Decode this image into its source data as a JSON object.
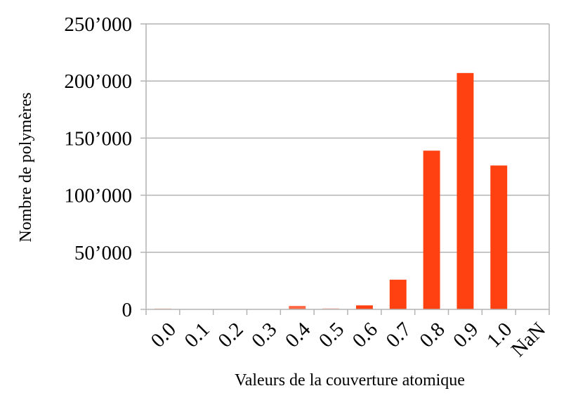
{
  "chart_data": {
    "type": "bar",
    "categories": [
      "0.0",
      "0.1",
      "0.2",
      "0.3",
      "0.4",
      "0.5",
      "0.6",
      "0.7",
      "0.8",
      "0.9",
      "1.0",
      "NaN"
    ],
    "values": [
      800,
      0,
      300,
      0,
      3000,
      1000,
      3500,
      26000,
      139000,
      207000,
      126000,
      0
    ],
    "bar_colors": [
      "#FFC3B0",
      "#FF4011",
      "#FFC3B0",
      "#FF4011",
      "#FF6A45",
      "#FFC3B0",
      "#FF4011",
      "#FF4011",
      "#FF4011",
      "#FF4011",
      "#FF4011",
      "#FF4011"
    ],
    "ylim": [
      0,
      250000
    ],
    "yticks": [
      0,
      50000,
      100000,
      150000,
      200000,
      250000
    ],
    "ytick_labels": [
      "0",
      "50’000",
      "100’000",
      "150’000",
      "200’000",
      "250’000"
    ],
    "xlabel": "Valeurs de la couverture atomique",
    "ylabel": "Nombre de polymères",
    "grid": "horizontal",
    "legend": "none",
    "colors": {
      "bar": "#FF4011",
      "grid": "#B3B3B3",
      "axis": "#B3B3B3"
    }
  }
}
